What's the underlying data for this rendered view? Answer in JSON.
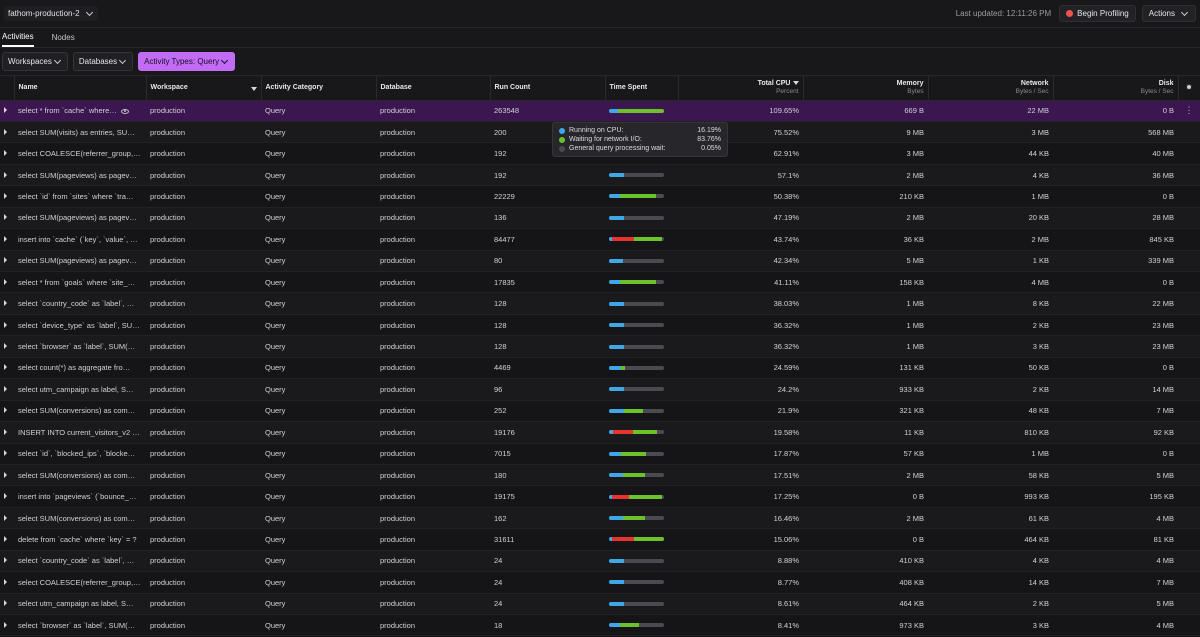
{
  "colors": {
    "cpu": "#3fa6e8",
    "network": "#6cc22a",
    "lock": "#e8332e",
    "idle": "#4a4a50",
    "accent": "#c26cf5",
    "record": "#f05252"
  },
  "topbar": {
    "cluster": "fathom-production-2",
    "last_updated": "Last updated: 12:11:26 PM",
    "begin_profiling": "Begin Profiling",
    "actions": "Actions"
  },
  "tabs": [
    {
      "label": "Activities"
    },
    {
      "label": "Nodes"
    }
  ],
  "filters": {
    "workspaces": "Workspaces",
    "databases": "Databases",
    "activity_types": "Activity Types: Query"
  },
  "columns": {
    "name": "Name",
    "workspace": "Workspace",
    "category": "Activity Category",
    "database": "Database",
    "run_count": "Run Count",
    "time_spent": "Time Spent",
    "total_cpu": "Total CPU",
    "total_cpu_sub": "Percent",
    "memory": "Memory",
    "memory_sub": "Bytes",
    "network": "Network",
    "network_sub": "Bytes / Sec",
    "disk": "Disk",
    "disk_sub": "Bytes / Sec"
  },
  "tooltip": [
    {
      "label": "Running on CPU:",
      "value": "16.19%",
      "color": "#3fa6e8"
    },
    {
      "label": "Waiting for network I/O:",
      "value": "83.76%",
      "color": "#6cc22a"
    },
    {
      "label": "General query processing wait:",
      "value": "0.05%",
      "color": "#4a4a50"
    }
  ],
  "rows": [
    {
      "name": "select * from `cache` where…",
      "workspace": "production",
      "category": "Query",
      "database": "production",
      "run_count": "263548",
      "time": [
        0.16,
        0.84,
        0
      ],
      "cpu": "109.65%",
      "memory": "669 B",
      "network": "22 MB",
      "disk": "0 B"
    },
    {
      "name": "select SUM(visits) as entries, SU…",
      "workspace": "production",
      "category": "Query",
      "database": "production",
      "run_count": "200",
      "time": [
        0.25,
        0.7,
        0
      ],
      "cpu": "75.52%",
      "memory": "9 MB",
      "network": "3 MB",
      "disk": "568 MB"
    },
    {
      "name": "select COALESCE(referrer_group,…",
      "workspace": "production",
      "category": "Query",
      "database": "production",
      "run_count": "192",
      "time": [
        0.25,
        0.7,
        0
      ],
      "cpu": "62.91%",
      "memory": "3 MB",
      "network": "44 KB",
      "disk": "40 MB"
    },
    {
      "name": "select SUM(pageviews) as pagev…",
      "workspace": "production",
      "category": "Query",
      "database": "production",
      "run_count": "192",
      "time": [
        0.27,
        0,
        0
      ],
      "cpu": "57.1%",
      "memory": "2 MB",
      "network": "4 KB",
      "disk": "36 MB"
    },
    {
      "name": "select `id` from `sites` where `tra…",
      "workspace": "production",
      "category": "Query",
      "database": "production",
      "run_count": "22229",
      "time": [
        0.2,
        0.65,
        0
      ],
      "cpu": "50.38%",
      "memory": "210 KB",
      "network": "1 MB",
      "disk": "0 B"
    },
    {
      "name": "select SUM(pageviews) as pagev…",
      "workspace": "production",
      "category": "Query",
      "database": "production",
      "run_count": "136",
      "time": [
        0.27,
        0,
        0
      ],
      "cpu": "47.19%",
      "memory": "2 MB",
      "network": "20 KB",
      "disk": "28 MB"
    },
    {
      "name": "insert into `cache` (`key`, `value`, …",
      "workspace": "production",
      "category": "Query",
      "database": "production",
      "run_count": "84477",
      "time": [
        0.06,
        0.5,
        0.4
      ],
      "cpu": "43.74%",
      "memory": "36 KB",
      "network": "2 MB",
      "disk": "845 KB"
    },
    {
      "name": "select SUM(pageviews) as pagev…",
      "workspace": "production",
      "category": "Query",
      "database": "production",
      "run_count": "80",
      "time": [
        0.25,
        0,
        0
      ],
      "cpu": "42.34%",
      "memory": "5 MB",
      "network": "1 KB",
      "disk": "339 MB"
    },
    {
      "name": "select * from `goals` where `site_…",
      "workspace": "production",
      "category": "Query",
      "database": "production",
      "run_count": "17835",
      "time": [
        0.2,
        0.65,
        0
      ],
      "cpu": "41.11%",
      "memory": "158 KB",
      "network": "4 MB",
      "disk": "0 B"
    },
    {
      "name": "select `country_code` as `label`, …",
      "workspace": "production",
      "category": "Query",
      "database": "production",
      "run_count": "128",
      "time": [
        0.27,
        0,
        0
      ],
      "cpu": "38.03%",
      "memory": "1 MB",
      "network": "8 KB",
      "disk": "22 MB"
    },
    {
      "name": "select `device_type` as `label`, SU…",
      "workspace": "production",
      "category": "Query",
      "database": "production",
      "run_count": "128",
      "time": [
        0.27,
        0,
        0
      ],
      "cpu": "36.32%",
      "memory": "1 MB",
      "network": "2 KB",
      "disk": "23 MB"
    },
    {
      "name": "select `browser` as `label`, SUM(…",
      "workspace": "production",
      "category": "Query",
      "database": "production",
      "run_count": "128",
      "time": [
        0.27,
        0,
        0
      ],
      "cpu": "36.32%",
      "memory": "1 MB",
      "network": "3 KB",
      "disk": "23 MB"
    },
    {
      "name": "select count(*) as aggregate fro…",
      "workspace": "production",
      "category": "Query",
      "database": "production",
      "run_count": "4469",
      "time": [
        0.22,
        0.08,
        0
      ],
      "cpu": "24.59%",
      "memory": "131 KB",
      "network": "50 KB",
      "disk": "0 B"
    },
    {
      "name": "select utm_campaign as label, S…",
      "workspace": "production",
      "category": "Query",
      "database": "production",
      "run_count": "96",
      "time": [
        0.27,
        0,
        0
      ],
      "cpu": "24.2%",
      "memory": "933 KB",
      "network": "2 KB",
      "disk": "14 MB"
    },
    {
      "name": "select SUM(conversions) as com…",
      "workspace": "production",
      "category": "Query",
      "database": "production",
      "run_count": "252",
      "time": [
        0.27,
        0.35,
        0
      ],
      "cpu": "21.9%",
      "memory": "321 KB",
      "network": "48 KB",
      "disk": "7 MB"
    },
    {
      "name": "INSERT INTO current_visitors_v2 …",
      "workspace": "production",
      "category": "Query",
      "database": "production",
      "run_count": "19176",
      "time": [
        0.08,
        0.45,
        0.35
      ],
      "cpu": "19.58%",
      "memory": "11 KB",
      "network": "810 KB",
      "disk": "92 KB"
    },
    {
      "name": "select `id`, `blocked_ips`, `blocke…",
      "workspace": "production",
      "category": "Query",
      "database": "production",
      "run_count": "7015",
      "time": [
        0.22,
        0.45,
        0
      ],
      "cpu": "17.87%",
      "memory": "57 KB",
      "network": "1 MB",
      "disk": "0 B"
    },
    {
      "name": "select SUM(conversions) as com…",
      "workspace": "production",
      "category": "Query",
      "database": "production",
      "run_count": "180",
      "time": [
        0.25,
        0.4,
        0
      ],
      "cpu": "17.51%",
      "memory": "2 MB",
      "network": "58 KB",
      "disk": "5 MB"
    },
    {
      "name": "insert into `pageviews` (`bounce_…",
      "workspace": "production",
      "category": "Query",
      "database": "production",
      "run_count": "19175",
      "time": [
        0.06,
        0.6,
        0.3
      ],
      "cpu": "17.25%",
      "memory": "0 B",
      "network": "993 KB",
      "disk": "195 KB"
    },
    {
      "name": "select SUM(conversions) as com…",
      "workspace": "production",
      "category": "Query",
      "database": "production",
      "run_count": "162",
      "time": [
        0.25,
        0.4,
        0
      ],
      "cpu": "16.46%",
      "memory": "2 MB",
      "network": "61 KB",
      "disk": "4 MB"
    },
    {
      "name": "delete from `cache` where `key` = ?",
      "workspace": "production",
      "category": "Query",
      "database": "production",
      "run_count": "31611",
      "time": [
        0.06,
        0.55,
        0.39
      ],
      "cpu": "15.06%",
      "memory": "0 B",
      "network": "464 KB",
      "disk": "81 KB"
    },
    {
      "name": "select `country_code` as `label`, …",
      "workspace": "production",
      "category": "Query",
      "database": "production",
      "run_count": "24",
      "time": [
        0.27,
        0,
        0
      ],
      "cpu": "8.88%",
      "memory": "410 KB",
      "network": "4 KB",
      "disk": "4 MB"
    },
    {
      "name": "select COALESCE(referrer_group,…",
      "workspace": "production",
      "category": "Query",
      "database": "production",
      "run_count": "24",
      "time": [
        0.27,
        0,
        0
      ],
      "cpu": "8.77%",
      "memory": "408 KB",
      "network": "14 KB",
      "disk": "7 MB"
    },
    {
      "name": "select utm_campaign as label, S…",
      "workspace": "production",
      "category": "Query",
      "database": "production",
      "run_count": "24",
      "time": [
        0.27,
        0,
        0
      ],
      "cpu": "8.61%",
      "memory": "464 KB",
      "network": "2 KB",
      "disk": "5 MB"
    },
    {
      "name": "select `browser` as `label`, SUM(…",
      "workspace": "production",
      "category": "Query",
      "database": "production",
      "run_count": "18",
      "time": [
        0.2,
        0.35,
        0
      ],
      "cpu": "8.41%",
      "memory": "973 KB",
      "network": "3 KB",
      "disk": "4 MB"
    }
  ]
}
